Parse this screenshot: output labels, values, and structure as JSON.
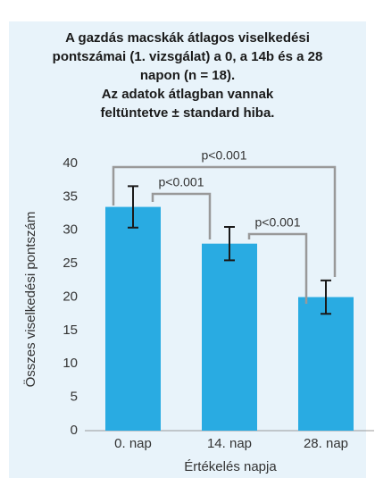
{
  "chart_data": {
    "type": "bar",
    "title": "A gazdás macskák átlagos viselkedési pontszámai (1. vizsgálat) a 0, a 14b és a 28 napon (n = 18).",
    "subtitle": "Az adatok átlagban vannak feltüntetve ± standard hiba.",
    "x_label": "Értékelés napja",
    "y_label": "Összes viselkedési pontszám",
    "categories": [
      "0. nap",
      "14. nap",
      "28. nap"
    ],
    "values": [
      33.5,
      28,
      20
    ],
    "errors": [
      3.1,
      2.5,
      2.5
    ],
    "color": "#29abe2",
    "ylim": [
      0,
      40
    ],
    "yticks": [
      0,
      5,
      10,
      15,
      20,
      25,
      30,
      35,
      40
    ],
    "grid": false,
    "annotations": [
      "p<0.001",
      "p<0.001",
      "p<0.001"
    ]
  }
}
